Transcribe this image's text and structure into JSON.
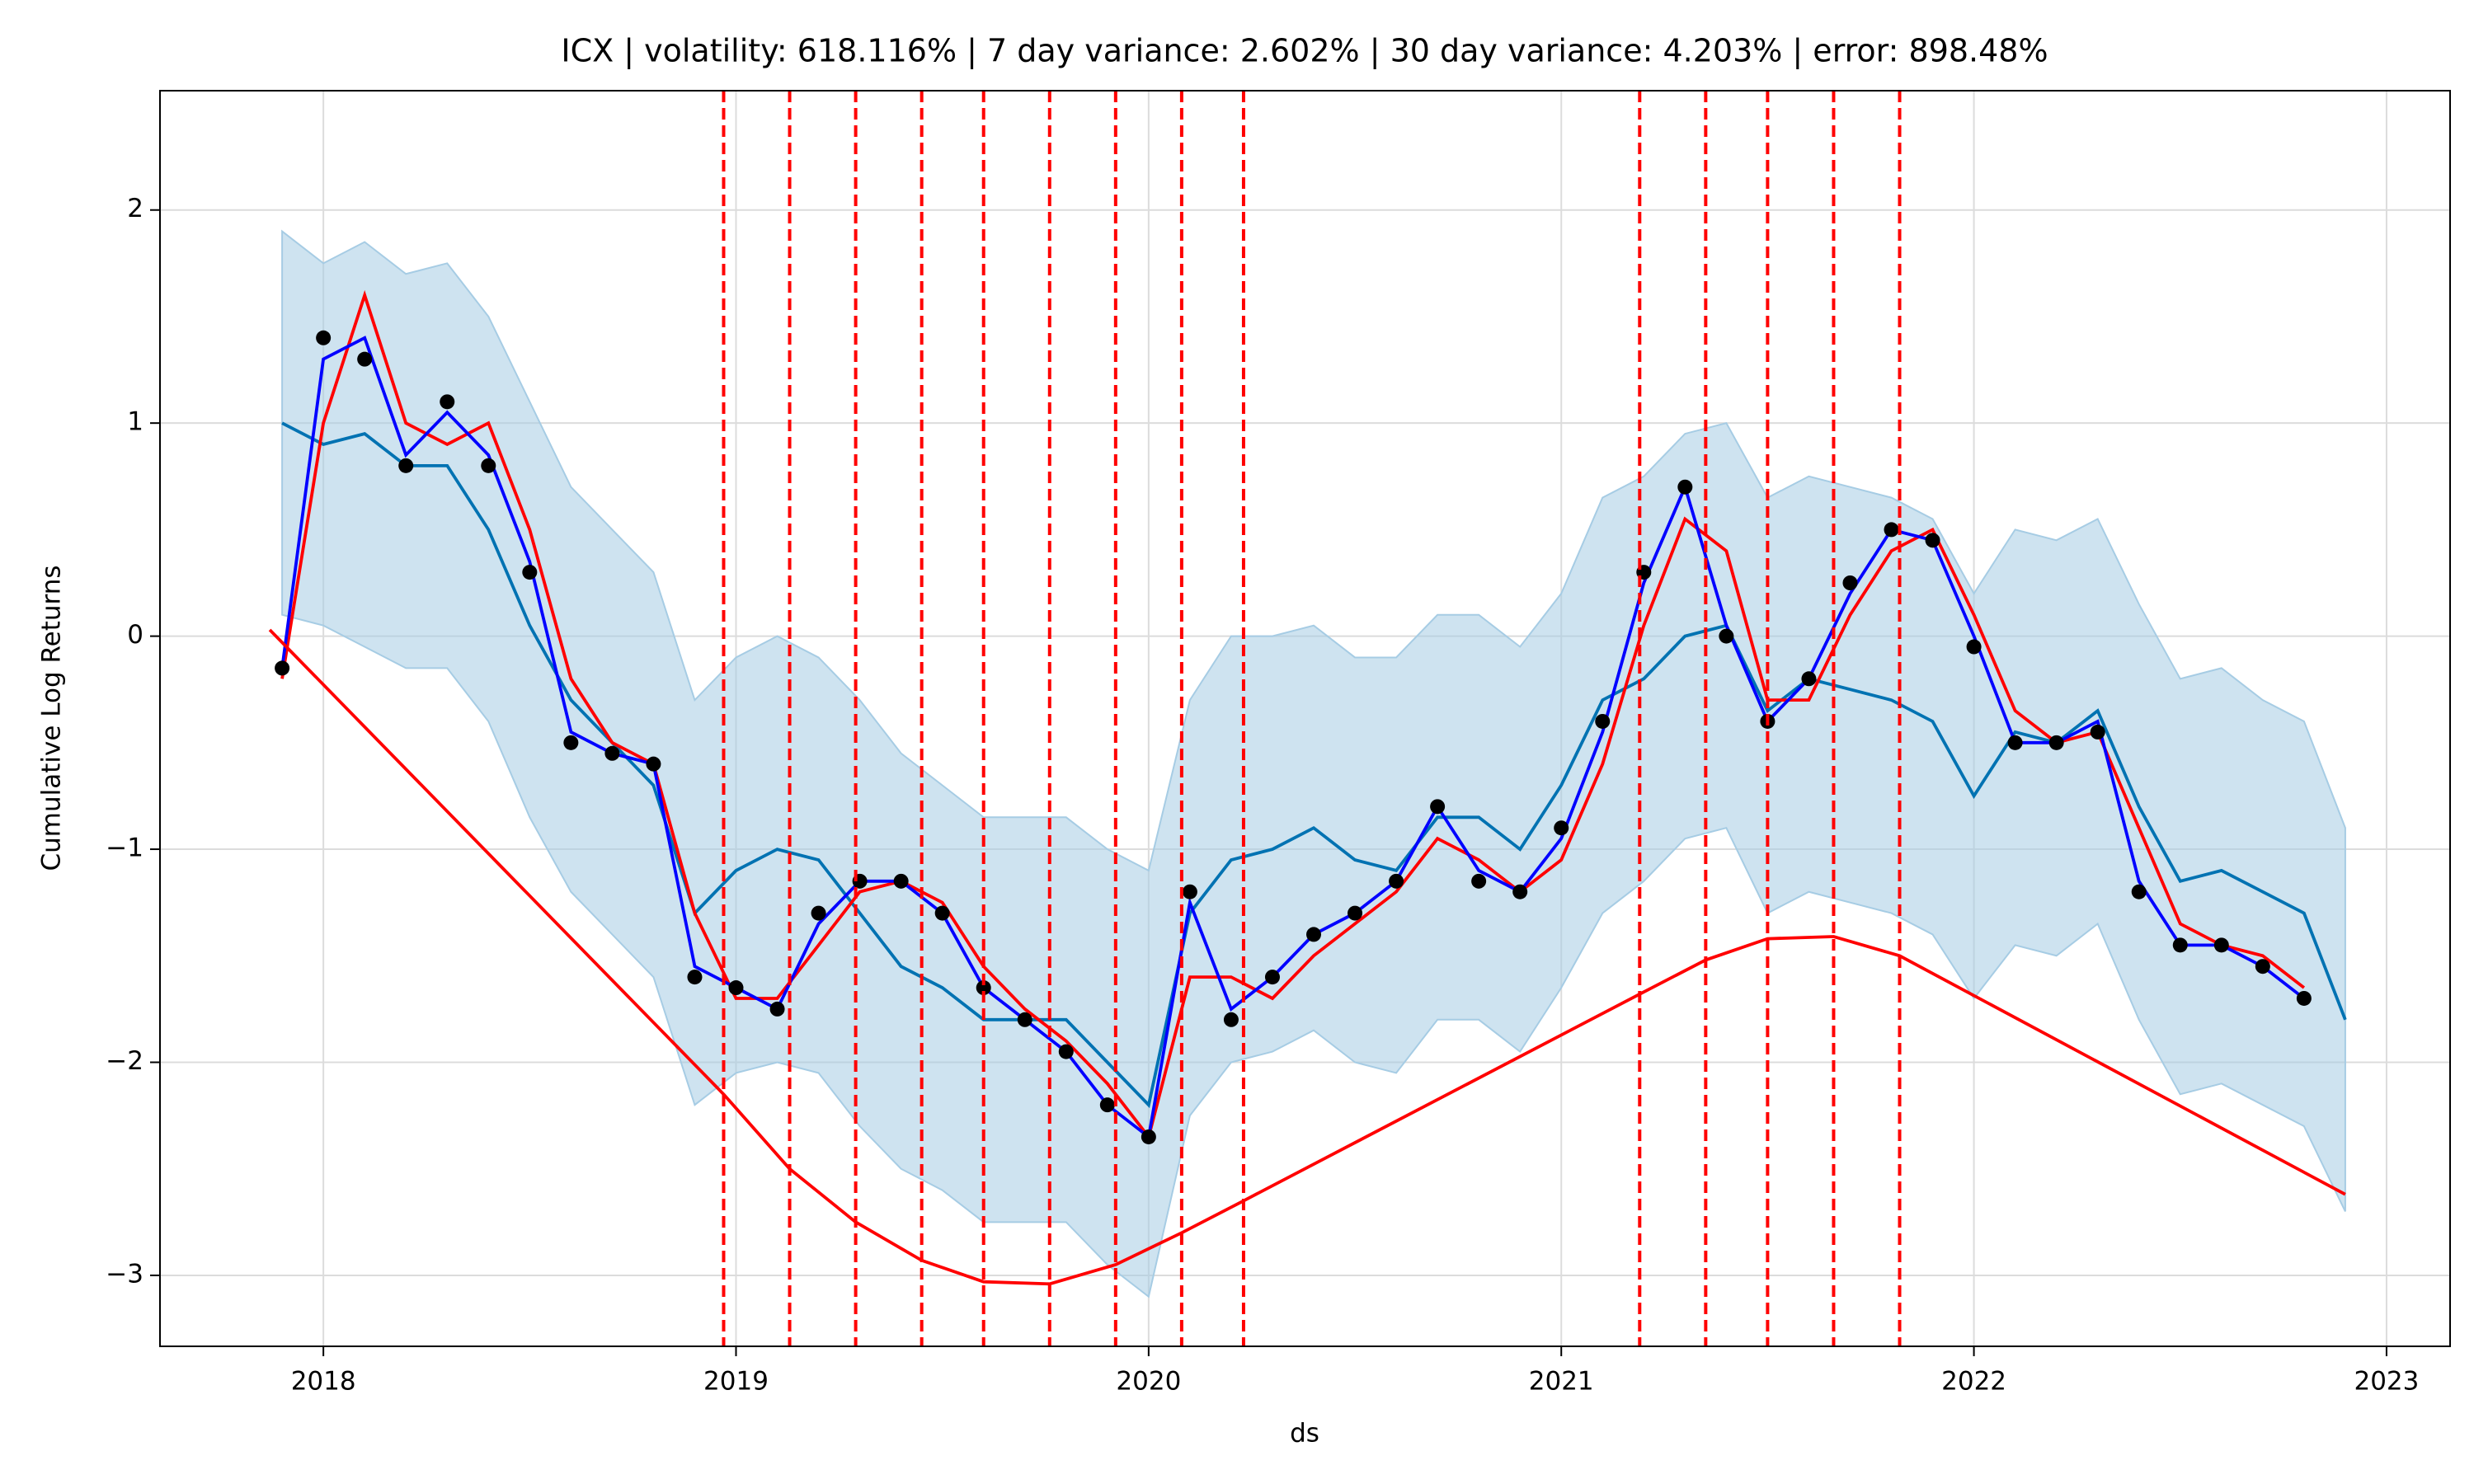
{
  "chart_data": {
    "type": "line",
    "title": "ICX | volatility: 618.116% | 7 day variance: 2.602% | 30 day variance: 4.203% | error: 898.48%",
    "x_label": "ds",
    "y_label": "Cumulative Log Returns",
    "xlim": [
      2017.604,
      2023.154
    ],
    "ylim": [
      -3.333,
      2.56
    ],
    "xticks": [
      {
        "value": 2018,
        "label": "2018"
      },
      {
        "value": 2019,
        "label": "2019"
      },
      {
        "value": 2020,
        "label": "2020"
      },
      {
        "value": 2021,
        "label": "2021"
      },
      {
        "value": 2022,
        "label": "2022"
      },
      {
        "value": 2023,
        "label": "2023"
      }
    ],
    "yticks": [
      {
        "value": -3,
        "label": "−3"
      },
      {
        "value": -2,
        "label": "−2"
      },
      {
        "value": -1,
        "label": "−1"
      },
      0,
      1,
      2
    ],
    "grid": true,
    "x": [
      2017.9,
      2018.0,
      2018.1,
      2018.2,
      2018.3,
      2018.4,
      2018.5,
      2018.6,
      2018.7,
      2018.8,
      2018.9,
      2019.0,
      2019.1,
      2019.2,
      2019.3,
      2019.4,
      2019.5,
      2019.6,
      2019.7,
      2019.8,
      2019.9,
      2020.0,
      2020.1,
      2020.2,
      2020.3,
      2020.4,
      2020.5,
      2020.6,
      2020.7,
      2020.8,
      2020.9,
      2021.0,
      2021.1,
      2021.2,
      2021.3,
      2021.4,
      2021.5,
      2021.6,
      2021.7,
      2021.8,
      2021.9,
      2022.0,
      2022.1,
      2022.2,
      2022.3,
      2022.4,
      2022.5,
      2022.6,
      2022.7,
      2022.8,
      2022.9
    ],
    "series": [
      {
        "kind": "band",
        "color": "#a6cce4",
        "upper": [
          1.9,
          1.75,
          1.85,
          1.7,
          1.75,
          1.5,
          1.1,
          0.7,
          0.5,
          0.3,
          -0.3,
          -0.1,
          0.0,
          -0.1,
          -0.3,
          -0.55,
          -0.7,
          -0.85,
          -0.85,
          -0.85,
          -1.0,
          -1.1,
          -0.3,
          0.0,
          0.0,
          0.05,
          -0.1,
          -0.1,
          0.1,
          0.1,
          -0.05,
          0.2,
          0.65,
          0.75,
          0.95,
          1.0,
          0.65,
          0.75,
          0.7,
          0.65,
          0.55,
          0.2,
          0.5,
          0.45,
          0.55,
          0.15,
          -0.2,
          -0.15,
          -0.3,
          -0.4,
          -0.9
        ],
        "lower": [
          0.1,
          0.05,
          -0.05,
          -0.15,
          -0.15,
          -0.4,
          -0.85,
          -1.2,
          -1.4,
          -1.6,
          -2.2,
          -2.05,
          -2.0,
          -2.05,
          -2.3,
          -2.5,
          -2.6,
          -2.75,
          -2.75,
          -2.75,
          -2.95,
          -3.1,
          -2.25,
          -2.0,
          -1.95,
          -1.85,
          -2.0,
          -2.05,
          -1.8,
          -1.8,
          -1.95,
          -1.65,
          -1.3,
          -1.15,
          -0.95,
          -0.9,
          -1.3,
          -1.2,
          -1.25,
          -1.3,
          -1.4,
          -1.7,
          -1.45,
          -1.5,
          -1.35,
          -1.8,
          -2.15,
          -2.1,
          -2.2,
          -2.3,
          -2.7
        ]
      },
      {
        "kind": "line",
        "color": "#0072b2",
        "width": 2,
        "values": [
          1.0,
          0.9,
          0.95,
          0.8,
          0.8,
          0.5,
          0.05,
          -0.3,
          -0.5,
          -0.7,
          -1.3,
          -1.1,
          -1.0,
          -1.05,
          -1.3,
          -1.55,
          -1.65,
          -1.8,
          -1.8,
          -1.8,
          -2.0,
          -2.2,
          -1.3,
          -1.05,
          -1.0,
          -0.9,
          -1.05,
          -1.1,
          -0.85,
          -0.85,
          -1.0,
          -0.7,
          -0.3,
          -0.2,
          0.0,
          0.05,
          -0.35,
          -0.2,
          -0.25,
          -0.3,
          -0.4,
          -0.75,
          -0.45,
          -0.5,
          -0.35,
          -0.8,
          -1.15,
          -1.1,
          -1.2,
          -1.3,
          -1.8
        ]
      },
      {
        "kind": "dots",
        "color": "#000000",
        "values": [
          -0.15,
          1.4,
          1.3,
          0.8,
          1.1,
          0.8,
          0.3,
          -0.5,
          -0.55,
          -0.6,
          -1.6,
          -1.65,
          -1.75,
          -1.3,
          -1.15,
          -1.15,
          -1.3,
          -1.65,
          -1.8,
          -1.95,
          -2.2,
          -2.35,
          -1.2,
          -1.8,
          -1.6,
          -1.4,
          -1.3,
          -1.15,
          -0.8,
          -1.15,
          -1.2,
          -0.9,
          -0.4,
          0.3,
          0.7,
          0.0,
          -0.4,
          -0.2,
          0.25,
          0.5,
          0.45,
          -0.05,
          -0.5,
          -0.5,
          -0.45,
          -1.2,
          -1.45,
          -1.45,
          -1.55,
          -1.7,
          null
        ]
      },
      {
        "kind": "line",
        "color": "#ff0000",
        "width": 2,
        "values": [
          -0.2,
          1.0,
          1.6,
          1.0,
          0.9,
          1.0,
          0.5,
          -0.2,
          -0.5,
          -0.6,
          -1.3,
          -1.7,
          -1.7,
          -1.45,
          -1.2,
          -1.15,
          -1.25,
          -1.55,
          -1.75,
          -1.9,
          -2.1,
          -2.35,
          -1.6,
          -1.6,
          -1.7,
          -1.5,
          -1.35,
          -1.2,
          -0.95,
          -1.05,
          -1.2,
          -1.05,
          -0.6,
          0.05,
          0.55,
          0.4,
          -0.3,
          -0.3,
          0.1,
          0.4,
          0.5,
          0.1,
          -0.35,
          -0.5,
          -0.45,
          -0.9,
          -1.35,
          -1.45,
          -1.5,
          -1.65,
          null
        ]
      },
      {
        "kind": "line",
        "color": "#0000ff",
        "width": 2,
        "values": [
          -0.15,
          1.3,
          1.4,
          0.85,
          1.05,
          0.85,
          0.35,
          -0.45,
          -0.55,
          -0.6,
          -1.55,
          -1.65,
          -1.75,
          -1.35,
          -1.15,
          -1.15,
          -1.3,
          -1.65,
          -1.8,
          -1.95,
          -2.2,
          -2.35,
          -1.25,
          -1.75,
          -1.6,
          -1.4,
          -1.3,
          -1.15,
          -0.8,
          -1.1,
          -1.2,
          -0.95,
          -0.45,
          0.25,
          0.7,
          0.05,
          -0.4,
          -0.2,
          0.2,
          0.5,
          0.45,
          0.0,
          -0.5,
          -0.5,
          -0.4,
          -1.15,
          -1.45,
          -1.45,
          -1.55,
          -1.7,
          null
        ]
      },
      {
        "kind": "line",
        "color": "#ff0000",
        "width": 2,
        "x": [
          2017.87,
          2018.97,
          2019.13,
          2019.29,
          2019.45,
          2019.6,
          2019.76,
          2019.92,
          2020.08,
          2020.23,
          2021.19,
          2021.35,
          2021.5,
          2021.66,
          2021.82,
          2022.9
        ],
        "values": [
          0.03,
          -2.15,
          -2.5,
          -2.75,
          -2.93,
          -3.03,
          -3.04,
          -2.95,
          -2.8,
          -2.65,
          -1.68,
          -1.52,
          -1.42,
          -1.41,
          -1.5,
          -2.62
        ]
      }
    ],
    "changepoints": {
      "color": "#ff0000",
      "x": [
        2018.97,
        2019.13,
        2019.29,
        2019.45,
        2019.6,
        2019.76,
        2019.92,
        2020.08,
        2020.23,
        2021.19,
        2021.35,
        2021.5,
        2021.66,
        2021.82
      ]
    }
  }
}
